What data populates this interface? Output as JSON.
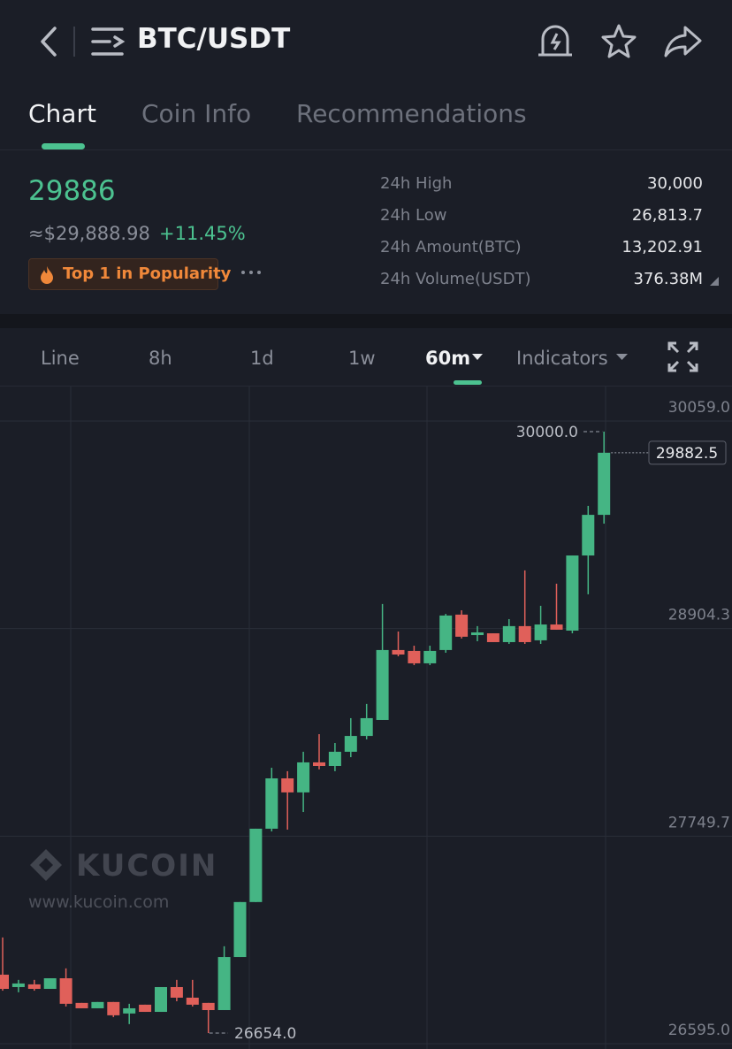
{
  "header": {
    "title": "BTC/USDT"
  },
  "tabs": [
    "Chart",
    "Coin Info",
    "Recommendations"
  ],
  "price": {
    "last": "29886",
    "fiat": "≈$29,888.98",
    "change": "+11.45%",
    "badge": "Top 1 in Popularity"
  },
  "stats": [
    {
      "label": "24h High",
      "value": "30,000"
    },
    {
      "label": "24h Low",
      "value": "26,813.7"
    },
    {
      "label": "24h Amount(BTC)",
      "value": "13,202.91"
    },
    {
      "label": "24h Volume(USDT)",
      "value": "376.38M"
    }
  ],
  "intervals": [
    "Line",
    "8h",
    "1d",
    "1w",
    "60m",
    "Indicators"
  ],
  "chart_data": {
    "type": "candlestick",
    "up_color": "#45b584",
    "down_color": "#e0605a",
    "grid": true,
    "ylim": [
      26595,
      30059
    ],
    "yticks": [
      {
        "value": 26595,
        "label": "26595.0"
      },
      {
        "value": 27749.7,
        "label": "27749.7"
      },
      {
        "value": 28904.3,
        "label": "28904.3"
      },
      {
        "value": 30059,
        "label": "30059.0"
      }
    ],
    "annotations": {
      "high": {
        "value": 30000,
        "label": "30000.0"
      },
      "low": {
        "value": 26654,
        "label": "26654.0"
      },
      "last": 29882.5
    },
    "watermark": {
      "brand": "KUCOIN",
      "url": "www.kucoin.com"
    },
    "candles": [
      {
        "open": 26979,
        "high": 27186,
        "low": 26890,
        "close": 26900
      },
      {
        "open": 26910,
        "high": 26950,
        "low": 26881,
        "close": 26930
      },
      {
        "open": 26925,
        "high": 26950,
        "low": 26890,
        "close": 26900
      },
      {
        "open": 26900,
        "high": 26959,
        "low": 26900,
        "close": 26959
      },
      {
        "open": 26959,
        "high": 27014,
        "low": 26802,
        "close": 26817
      },
      {
        "open": 26822,
        "high": 26822,
        "low": 26792,
        "close": 26792
      },
      {
        "open": 26792,
        "high": 26827,
        "low": 26792,
        "close": 26827
      },
      {
        "open": 26827,
        "high": 26827,
        "low": 26743,
        "close": 26753
      },
      {
        "open": 26763,
        "high": 26817,
        "low": 26704,
        "close": 26792
      },
      {
        "open": 26812,
        "high": 26812,
        "low": 26772,
        "close": 26772
      },
      {
        "open": 26772,
        "high": 26910,
        "low": 26772,
        "close": 26910
      },
      {
        "open": 26910,
        "high": 26950,
        "low": 26831,
        "close": 26851
      },
      {
        "open": 26851,
        "high": 26950,
        "low": 26802,
        "close": 26812
      },
      {
        "open": 26822,
        "high": 26822,
        "low": 26654,
        "close": 26782
      },
      {
        "open": 26782,
        "high": 27137,
        "low": 26782,
        "close": 27077
      },
      {
        "open": 27077,
        "high": 27383,
        "low": 27077,
        "close": 27383
      },
      {
        "open": 27383,
        "high": 27791,
        "low": 27383,
        "close": 27791
      },
      {
        "open": 27791,
        "high": 28130,
        "low": 27776,
        "close": 28071
      },
      {
        "open": 28071,
        "high": 28111,
        "low": 27786,
        "close": 27993
      },
      {
        "open": 27993,
        "high": 28219,
        "low": 27884,
        "close": 28160
      },
      {
        "open": 28160,
        "high": 28317,
        "low": 28121,
        "close": 28140
      },
      {
        "open": 28140,
        "high": 28268,
        "low": 28111,
        "close": 28219
      },
      {
        "open": 28219,
        "high": 28406,
        "low": 28189,
        "close": 28307
      },
      {
        "open": 28307,
        "high": 28485,
        "low": 28288,
        "close": 28406
      },
      {
        "open": 28396,
        "high": 29041,
        "low": 28396,
        "close": 28785
      },
      {
        "open": 28785,
        "high": 28888,
        "low": 28750,
        "close": 28760
      },
      {
        "open": 28780,
        "high": 28809,
        "low": 28701,
        "close": 28711
      },
      {
        "open": 28711,
        "high": 28809,
        "low": 28701,
        "close": 28780
      },
      {
        "open": 28785,
        "high": 28986,
        "low": 28770,
        "close": 28977
      },
      {
        "open": 28982,
        "high": 29006,
        "low": 28849,
        "close": 28859
      },
      {
        "open": 28868,
        "high": 28918,
        "low": 28834,
        "close": 28883
      },
      {
        "open": 28878,
        "high": 28878,
        "low": 28829,
        "close": 28829
      },
      {
        "open": 28829,
        "high": 28957,
        "low": 28819,
        "close": 28918
      },
      {
        "open": 28918,
        "high": 29228,
        "low": 28819,
        "close": 28829
      },
      {
        "open": 28839,
        "high": 29031,
        "low": 28819,
        "close": 28927
      },
      {
        "open": 28927,
        "high": 29154,
        "low": 28898,
        "close": 28898
      },
      {
        "open": 28893,
        "high": 29311,
        "low": 28878,
        "close": 29311
      },
      {
        "open": 29311,
        "high": 29587,
        "low": 29095,
        "close": 29537
      },
      {
        "open": 29537,
        "high": 30000,
        "low": 29488,
        "close": 29882.5
      }
    ]
  }
}
